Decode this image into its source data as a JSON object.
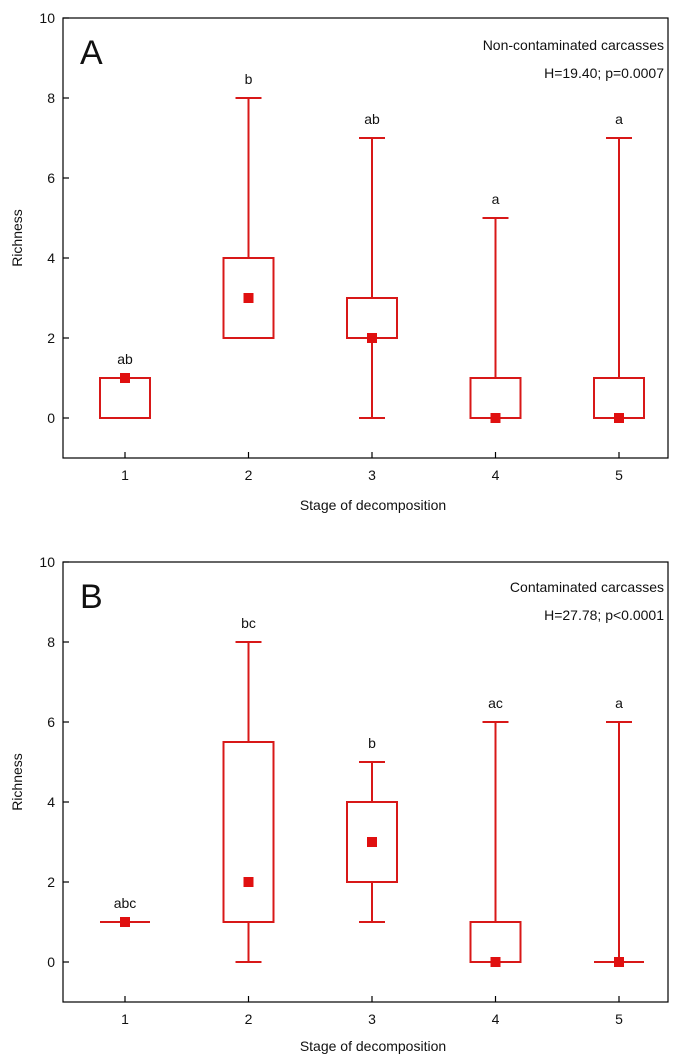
{
  "colors": {
    "box": "#d81818",
    "median": "#e01010",
    "axis": "#000000"
  },
  "chart_data": [
    {
      "type": "box",
      "panel_label": "A",
      "annotation": [
        "Non-contaminated carcasses",
        "H=19.40; p=0.0007"
      ],
      "xlabel": "Stage of decomposition",
      "ylabel": "Richness",
      "ylim": [
        -1,
        10
      ],
      "yticks": [
        0,
        2,
        4,
        6,
        8,
        10
      ],
      "categories": [
        "1",
        "2",
        "3",
        "4",
        "5"
      ],
      "boxes": [
        {
          "q1": 0,
          "q3": 1,
          "median": 1,
          "min": 0,
          "max": 1,
          "letter": "ab"
        },
        {
          "q1": 2,
          "q3": 4,
          "median": 3,
          "min": 2,
          "max": 8,
          "letter": "b"
        },
        {
          "q1": 2,
          "q3": 3,
          "median": 2,
          "min": 0,
          "max": 7,
          "letter": "ab"
        },
        {
          "q1": 0,
          "q3": 1,
          "median": 0,
          "min": 0,
          "max": 5,
          "letter": "a"
        },
        {
          "q1": 0,
          "q3": 1,
          "median": 0,
          "min": 0,
          "max": 7,
          "letter": "a"
        }
      ]
    },
    {
      "type": "box",
      "panel_label": "B",
      "annotation": [
        "Contaminated carcasses",
        "H=27.78; p<0.0001"
      ],
      "xlabel": "Stage of decomposition",
      "ylabel": "Richness",
      "ylim": [
        -1,
        10
      ],
      "yticks": [
        0,
        2,
        4,
        6,
        8,
        10
      ],
      "categories": [
        "1",
        "2",
        "3",
        "4",
        "5"
      ],
      "boxes": [
        {
          "q1": 1,
          "q3": 1,
          "median": 1,
          "min": 1,
          "max": 1,
          "letter": "abc"
        },
        {
          "q1": 1,
          "q3": 5.5,
          "median": 2,
          "min": 0,
          "max": 8,
          "letter": "bc"
        },
        {
          "q1": 2,
          "q3": 4,
          "median": 3,
          "min": 1,
          "max": 5,
          "letter": "b"
        },
        {
          "q1": 0,
          "q3": 1,
          "median": 0,
          "min": 0,
          "max": 6,
          "letter": "ac"
        },
        {
          "q1": 0,
          "q3": 0,
          "median": 0,
          "min": 0,
          "max": 6,
          "letter": "a"
        }
      ]
    }
  ]
}
